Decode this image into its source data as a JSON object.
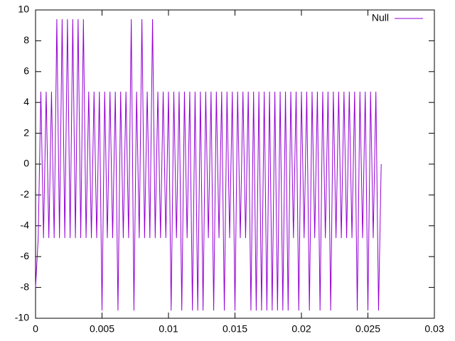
{
  "chart_data": {
    "type": "line",
    "x": [
      0,
      0.0002,
      0.0004,
      0.0006,
      0.0008,
      0.001,
      0.0012,
      0.0014,
      0.0016,
      0.0018,
      0.002,
      0.0022,
      0.0024,
      0.0026,
      0.0028,
      0.003,
      0.0032,
      0.0034,
      0.0036,
      0.0038,
      0.004,
      0.0042,
      0.0044,
      0.0046,
      0.0048,
      0.005,
      0.0052,
      0.0054,
      0.0056,
      0.0058,
      0.006,
      0.0062,
      0.0064,
      0.0066,
      0.0068,
      0.007,
      0.0072,
      0.0074,
      0.0076,
      0.0078,
      0.008,
      0.0082,
      0.0084,
      0.0086,
      0.0088,
      0.009,
      0.0092,
      0.0094,
      0.0096,
      0.0098,
      0.01,
      0.0102,
      0.0104,
      0.0106,
      0.0108,
      0.011,
      0.0112,
      0.0114,
      0.0116,
      0.0118,
      0.012,
      0.0122,
      0.0124,
      0.0126,
      0.0128,
      0.013,
      0.0132,
      0.0134,
      0.0136,
      0.0138,
      0.014,
      0.0142,
      0.0144,
      0.0146,
      0.0148,
      0.015,
      0.0152,
      0.0154,
      0.0156,
      0.0158,
      0.016,
      0.0162,
      0.0164,
      0.0166,
      0.0168,
      0.017,
      0.0172,
      0.0174,
      0.0176,
      0.0178,
      0.018,
      0.0182,
      0.0184,
      0.0186,
      0.0188,
      0.019,
      0.0192,
      0.0194,
      0.0196,
      0.0198,
      0.02,
      0.0202,
      0.0204,
      0.0206,
      0.0208,
      0.021,
      0.0212,
      0.0214,
      0.0216,
      0.0218,
      0.022,
      0.0222,
      0.0224,
      0.0226,
      0.0228,
      0.023,
      0.0232,
      0.0234,
      0.0236,
      0.0238,
      0.024,
      0.0242,
      0.0244,
      0.0246,
      0.0248,
      0.025,
      0.0252,
      0.0254,
      0.0256,
      0.0258,
      0.026
    ],
    "series": [
      {
        "name": "Null",
        "color": "#9400d3",
        "values": [
          -8,
          -4.8,
          4.7,
          -4.8,
          4.7,
          -4.8,
          4.7,
          -4.8,
          9.4,
          -4.8,
          9.4,
          -4.8,
          9.4,
          -4.8,
          9.4,
          -4.8,
          9.4,
          -4.8,
          9.4,
          -4.8,
          4.7,
          -4.8,
          4.7,
          -4.8,
          4.7,
          -9.5,
          4.7,
          -4.8,
          4.7,
          -4.8,
          4.7,
          -9.5,
          4.7,
          -4.8,
          4.7,
          -4.8,
          9.4,
          -9.5,
          4.7,
          -4.8,
          9.4,
          -4.8,
          4.7,
          -4.8,
          9.4,
          -4.8,
          4.7,
          -4.8,
          4.7,
          -4.8,
          4.7,
          -9.5,
          4.7,
          -4.8,
          4.7,
          -9.5,
          4.7,
          -4.8,
          4.7,
          -9.5,
          4.7,
          -9.5,
          4.7,
          -9.5,
          4.7,
          -4.8,
          4.7,
          -9.5,
          4.7,
          -4.8,
          4.7,
          -9.5,
          4.7,
          -4.8,
          4.7,
          -9.5,
          4.7,
          -4.8,
          4.7,
          -4.8,
          4.7,
          -9.5,
          4.7,
          -9.5,
          4.7,
          -9.5,
          4.7,
          -9.5,
          4.7,
          -9.5,
          4.7,
          -9.5,
          4.7,
          -9.5,
          4.7,
          -9.5,
          4.7,
          -4.8,
          4.7,
          -9.5,
          4.7,
          -4.8,
          4.7,
          -9.5,
          4.7,
          -4.8,
          4.7,
          -9.5,
          4.7,
          -4.8,
          4.7,
          -9.5,
          4.7,
          -4.8,
          4.7,
          -4.8,
          4.7,
          -4.8,
          4.7,
          -4.8,
          4.7,
          -9.5,
          4.7,
          -4.8,
          4.7,
          -9.5,
          4.7,
          -4.8,
          4.7,
          -9.5,
          0
        ]
      }
    ],
    "xlim": [
      0,
      0.03
    ],
    "xticks": [
      0,
      0.005,
      0.01,
      0.015,
      0.02,
      0.025,
      0.03
    ],
    "ylim": [
      -10,
      10
    ],
    "yticks": [
      -10,
      -8,
      -6,
      -4,
      -2,
      0,
      2,
      4,
      6,
      8,
      10
    ],
    "grid": false,
    "legend": "top-right"
  }
}
